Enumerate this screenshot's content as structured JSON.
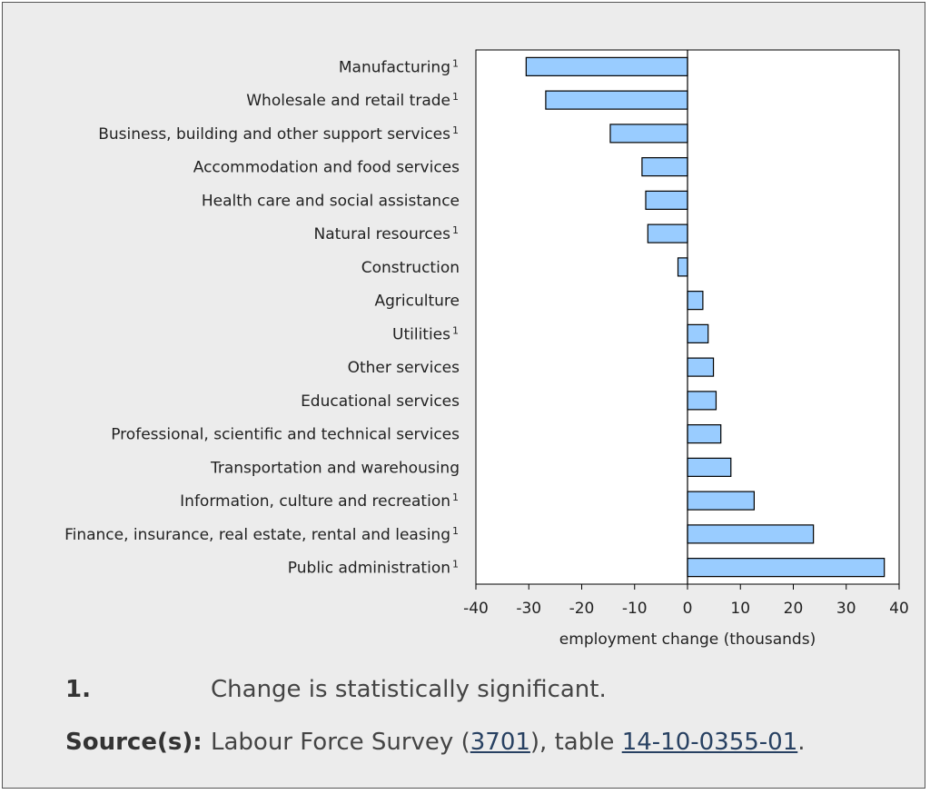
{
  "chart_data": {
    "type": "bar",
    "orientation": "horizontal",
    "categories": [
      "Manufacturing",
      "Wholesale and retail trade",
      "Business, building and other support services",
      "Accommodation and food services",
      "Health care and social assistance",
      "Natural resources",
      "Construction",
      "Agriculture",
      "Utilities",
      "Other services",
      "Educational services",
      "Professional, scientific and technical services",
      "Transportation and warehousing",
      "Information, culture and recreation",
      "Finance, insurance, real estate, rental and leasing",
      "Public administration"
    ],
    "footnote_marks": [
      "1",
      "1",
      "1",
      "",
      "",
      "1",
      "",
      "",
      "1",
      "",
      "",
      "",
      "",
      "1",
      "1",
      "1"
    ],
    "values": [
      -30.5,
      -26.8,
      -14.6,
      -8.6,
      -7.9,
      -7.5,
      -1.8,
      2.9,
      3.9,
      4.9,
      5.4,
      6.3,
      8.2,
      12.6,
      23.8,
      37.2
    ],
    "xlabel": "employment change (thousands)",
    "ylabel": "",
    "xlim": [
      -40,
      40
    ],
    "xticks": [
      -40,
      -30,
      -20,
      -10,
      0,
      10,
      20,
      30,
      40
    ],
    "bar_color": "#99ccff",
    "bar_edge_color": "#000000",
    "grid": false
  },
  "footnotes": {
    "note1": {
      "key": "1.",
      "text": "Change is statistically significant."
    },
    "source": {
      "key": "Source(s):",
      "text_before": "Labour Force Survey (",
      "link1": "3701",
      "text_mid": "), table ",
      "link2": "14-10-0355-01",
      "text_after": "."
    }
  },
  "colors": {
    "background": "#ececec",
    "plot_background": "#ffffff",
    "link": "#284162"
  }
}
